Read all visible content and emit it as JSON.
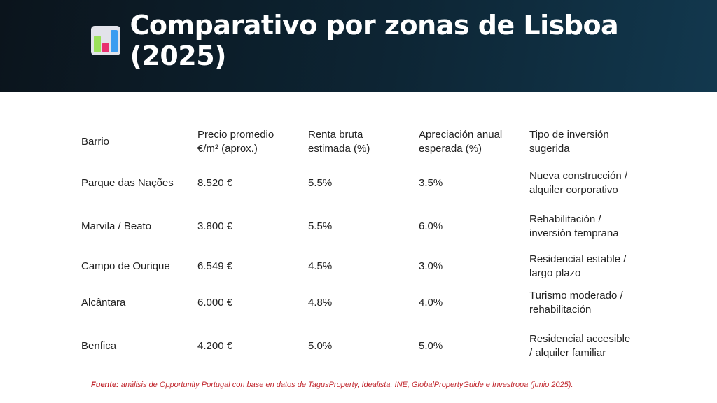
{
  "title": "Comparativo por zonas de Lisboa (2025)",
  "icon": "bar-chart-icon",
  "table": {
    "headers": [
      "Barrio",
      "Precio promedio €/m² (aprox.)",
      "Renta bruta estimada (%)",
      "Apreciación anual esperada (%)",
      "Tipo de inversión sugerida"
    ],
    "rows": [
      [
        "Parque das Nações",
        "8.520 €",
        "5.5%",
        "3.5%",
        "Nueva construcción / alquiler corporativo"
      ],
      [
        "Marvila / Beato",
        "3.800 €",
        "5.5%",
        "6.0%",
        "Rehabilitación / inversión temprana"
      ],
      [
        "Campo de Ourique",
        "6.549 €",
        "4.5%",
        "3.0%",
        "Residencial estable / largo plazo"
      ],
      [
        "Alcântara",
        "6.000 €",
        "4.8%",
        "4.0%",
        "Turismo moderado / rehabilitación"
      ],
      [
        "Benfica",
        "4.200 €",
        "5.0%",
        "5.0%",
        "Residencial accesible / alquiler familiar"
      ]
    ]
  },
  "source": {
    "label": "Fuente:",
    "text": " análisis de Opportunity Portugal con base en datos de TagusProperty, Idealista, INE, GlobalPropertyGuide e Investropa (junio 2025)."
  }
}
